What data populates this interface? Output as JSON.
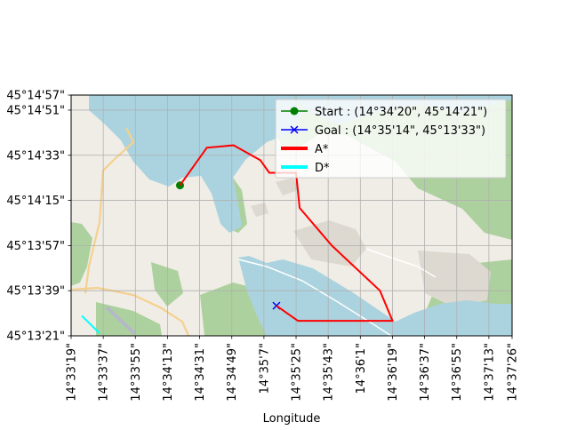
{
  "chart_data": {
    "type": "line",
    "title": "",
    "xlabel": "Longitude",
    "ylabel": "",
    "x_ticks": [
      "14°33'19\"",
      "14°33'37\"",
      "14°33'55\"",
      "14°34'13\"",
      "14°34'31\"",
      "14°34'49\"",
      "14°35'7\"",
      "14°35'25\"",
      "14°35'43\"",
      "14°36'1\"",
      "14°36'19\"",
      "14°36'37\"",
      "14°36'55\"",
      "14°37'13\"",
      "14°37'26\""
    ],
    "y_ticks": [
      "45°13'21\"",
      "45°13'39\"",
      "45°13'57\"",
      "45°14'15\"",
      "45°14'33\"",
      "45°14'51\"",
      "45°14'57\""
    ],
    "grid": true,
    "legend_position": "upper right",
    "background": "OpenStreetMap tiles: lake water, forest and urban areas",
    "series": [
      {
        "name": "Start : (14°34'20\", 45°14'21\")",
        "kind": "marker",
        "marker": "circle",
        "color": "#008000",
        "points": [
          [
            "14°34'20\"",
            "45°14'21\""
          ]
        ]
      },
      {
        "name": "Goal : (14°35'14\", 45°13'33\")",
        "kind": "marker",
        "marker": "x",
        "color": "#0000ff",
        "points": [
          [
            "14°35'14\"",
            "45°13'33\""
          ]
        ]
      },
      {
        "name": "A*",
        "kind": "line",
        "color": "#ff0000",
        "points": [
          [
            "14°34'20\"",
            "45°14'21\""
          ],
          [
            "14°34'35\"",
            "45°14'36\""
          ],
          [
            "14°34'50\"",
            "45°14'37\""
          ],
          [
            "14°35'5\"",
            "45°14'31\""
          ],
          [
            "14°35'10\"",
            "45°14'26\""
          ],
          [
            "14°35'25\"",
            "45°14'26\""
          ],
          [
            "14°35'27\"",
            "45°14'12\""
          ],
          [
            "14°35'45\"",
            "45°13'57\""
          ],
          [
            "14°36'12\"",
            "45°13'39\""
          ],
          [
            "14°36'19\"",
            "45°13'27\""
          ],
          [
            "14°35'26\"",
            "45°13'27\""
          ],
          [
            "14°35'14\"",
            "45°13'33\""
          ]
        ]
      },
      {
        "name": "D*",
        "kind": "line",
        "color": "#00ffff",
        "points": [
          [
            "14°33'25\"",
            "45°13'29\""
          ],
          [
            "14°33'35\"",
            "45°13'22\""
          ]
        ]
      }
    ]
  }
}
